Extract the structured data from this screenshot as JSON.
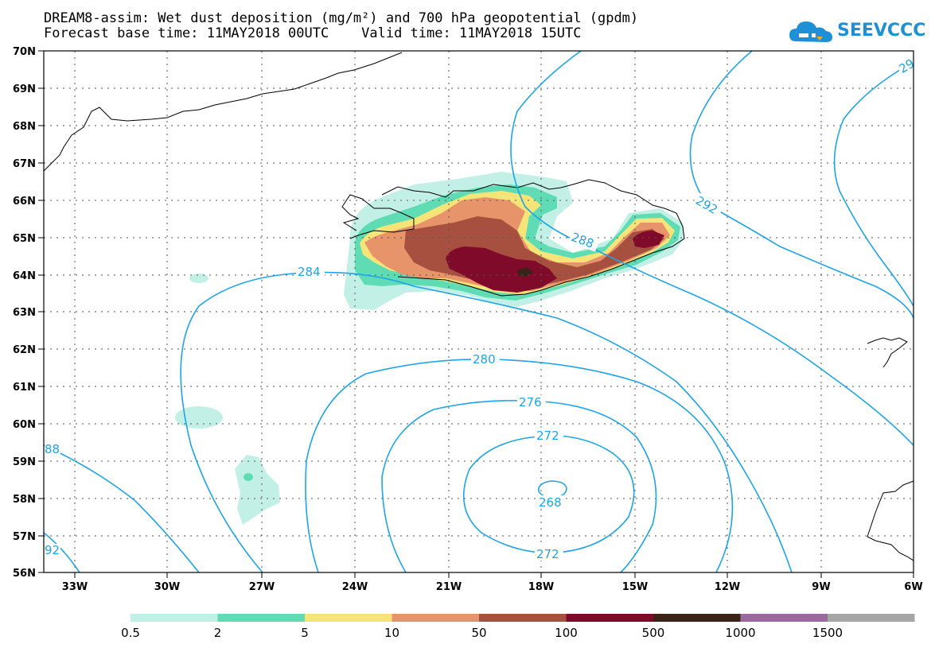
{
  "header": {
    "title_line1": "DREAM8-assim: Wet dust deposition (mg/m²) and 700 hPa geopotential (gpdm)",
    "title_line2": "Forecast base time: 11MAY2018 00UTC    Valid time: 11MAY2018 15UTC"
  },
  "logo": {
    "text": "SEEVCCC",
    "icon": "cloud-icon"
  },
  "map": {
    "lat_labels": [
      "70N",
      "69N",
      "68N",
      "67N",
      "66N",
      "65N",
      "64N",
      "63N",
      "62N",
      "61N",
      "60N",
      "59N",
      "58N",
      "57N",
      "56N"
    ],
    "lon_labels": [
      "33W",
      "30W",
      "27W",
      "24W",
      "21W",
      "18W",
      "15W",
      "12W",
      "9W",
      "6W"
    ],
    "contour_labels": [
      "284",
      "288",
      "292",
      "280",
      "276",
      "272",
      "268",
      "272",
      "88",
      "92",
      "29"
    ],
    "contour_color": "#1ea4e8",
    "coastline_color": "#000000",
    "grid": "dotted"
  },
  "colorbar": {
    "tick_labels": [
      "0.5",
      "2",
      "5",
      "10",
      "50",
      "100",
      "500",
      "1000",
      "1500"
    ],
    "colors": [
      "#c2f0e6",
      "#5fdcb4",
      "#f5e477",
      "#e8946a",
      "#a85040",
      "#800a2a",
      "#3a2418",
      "#9a6a9e",
      "#a6a6a6"
    ]
  }
}
